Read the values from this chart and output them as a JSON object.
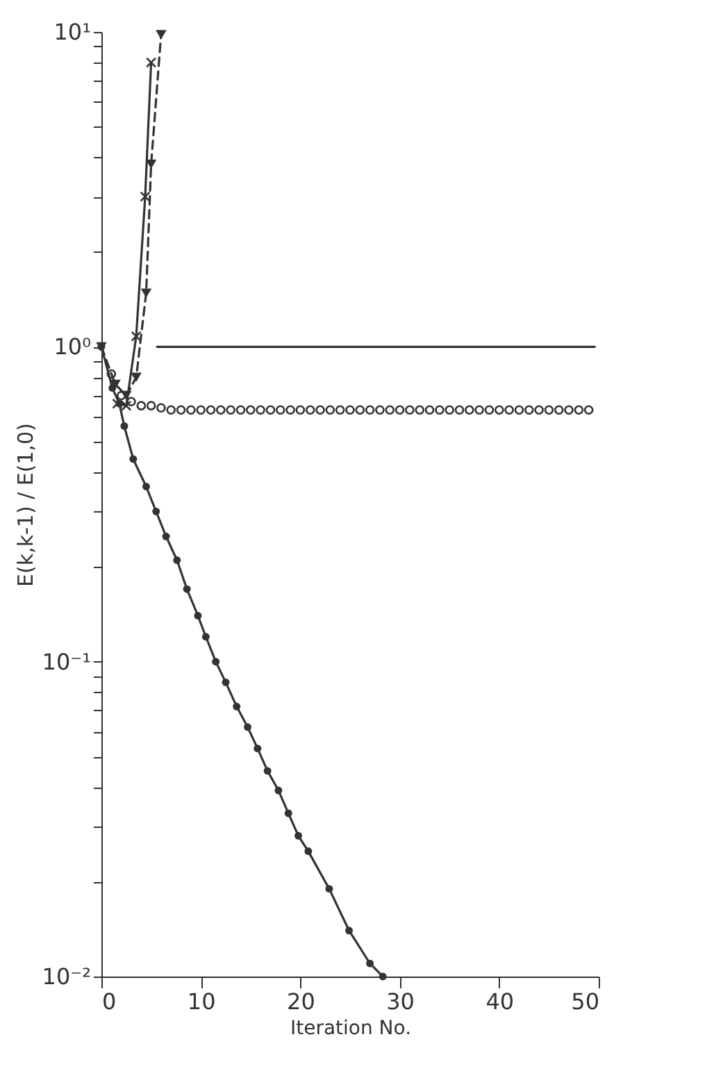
{
  "chart_data": {
    "type": "line",
    "xlabel": "Iteration No.",
    "ylabel": "E(k,k-1) / E(1,0)",
    "log": "y",
    "grid": false,
    "xlim": [
      0,
      50
    ],
    "xticks": [
      0,
      10,
      20,
      30,
      40,
      50
    ],
    "ylim": [
      0.01,
      10
    ],
    "yticks": [
      {
        "value": 0.01,
        "label": "10⁻²"
      },
      {
        "value": 0.02,
        "label": null
      },
      {
        "value": 0.03,
        "label": null
      },
      {
        "value": 0.04,
        "label": null
      },
      {
        "value": 0.05,
        "label": null
      },
      {
        "value": 0.06,
        "label": null
      },
      {
        "value": 0.07,
        "label": null
      },
      {
        "value": 0.08,
        "label": null
      },
      {
        "value": 0.09,
        "label": null
      },
      {
        "value": 0.1,
        "label": "10⁻¹"
      },
      {
        "value": 0.2,
        "label": null
      },
      {
        "value": 0.3,
        "label": null
      },
      {
        "value": 0.4,
        "label": null
      },
      {
        "value": 0.5,
        "label": null
      },
      {
        "value": 0.6,
        "label": null
      },
      {
        "value": 0.7,
        "label": null
      },
      {
        "value": 0.8,
        "label": null
      },
      {
        "value": 0.9,
        "label": null
      },
      {
        "value": 1,
        "label": "10⁰"
      },
      {
        "value": 2,
        "label": null
      },
      {
        "value": 3,
        "label": null
      },
      {
        "value": 4,
        "label": null
      },
      {
        "value": 5,
        "label": null
      },
      {
        "value": 6,
        "label": null
      },
      {
        "value": 7,
        "label": null
      },
      {
        "value": 8,
        "label": null
      },
      {
        "value": 9,
        "label": null
      },
      {
        "value": 10,
        "label": "10¹"
      }
    ],
    "series": [
      {
        "marker": "circle",
        "line_style": "solid",
        "color": "#333333",
        "x": [
          0,
          1.1,
          1.8,
          2.3,
          3.2,
          4.5,
          5.5,
          6.5,
          7.6,
          8.6,
          9.7,
          10.5,
          11.5,
          12.5,
          13.6,
          14.7,
          15.7,
          16.7,
          17.8,
          18.8,
          19.8,
          20.8,
          22.9,
          24.9,
          27.0,
          28.3
        ],
        "values": [
          1,
          0.74,
          0.66,
          0.56,
          0.44,
          0.36,
          0.3,
          0.25,
          0.21,
          0.17,
          0.14,
          0.12,
          0.1,
          0.086,
          0.072,
          0.062,
          0.053,
          0.045,
          0.039,
          0.033,
          0.028,
          0.025,
          0.019,
          0.014,
          0.011,
          0.01
        ]
      },
      {
        "type": "scatter",
        "marker": "circle",
        "color": "#333333",
        "x": [
          1,
          2,
          3,
          4,
          5,
          6,
          7,
          8,
          9,
          10,
          11,
          12,
          13,
          14,
          15,
          16,
          17,
          18,
          19,
          20,
          21,
          22,
          23,
          24,
          25,
          26,
          27,
          28,
          29,
          30,
          31,
          32,
          33,
          34,
          35,
          36,
          37,
          38,
          39,
          40,
          41,
          42,
          43,
          44,
          45,
          46,
          47,
          48,
          49
        ],
        "values": [
          0.82,
          0.7,
          0.67,
          0.65,
          0.65,
          0.64,
          0.63,
          0.63,
          0.63,
          0.63,
          0.63,
          0.63,
          0.63,
          0.63,
          0.63,
          0.63,
          0.63,
          0.63,
          0.63,
          0.63,
          0.63,
          0.63,
          0.63,
          0.63,
          0.63,
          0.63,
          0.63,
          0.63,
          0.63,
          0.63,
          0.63,
          0.63,
          0.63,
          0.63,
          0.63,
          0.63,
          0.63,
          0.63,
          0.63,
          0.63,
          0.63,
          0.63,
          0.63,
          0.63,
          0.63,
          0.63,
          0.63,
          0.63,
          0.63
        ]
      },
      {
        "type": "line",
        "marker": "none",
        "line_style": "solid",
        "color": "#333333",
        "x": [
          5.6,
          49.6
        ],
        "values": [
          1,
          1
        ]
      },
      {
        "type": "line",
        "marker": "cross",
        "line_style": "solid",
        "color": "#333333",
        "x": [
          1.6,
          2.5,
          3.5,
          4.4,
          5.0
        ],
        "values": [
          0.66,
          0.65,
          1.08,
          3.0,
          8.0
        ]
      },
      {
        "type": "line",
        "marker": "triangle",
        "line_style": "dashed",
        "color": "#333333",
        "x": [
          0,
          1.4,
          2.5,
          3.5,
          4.5,
          5.0,
          6.0
        ],
        "values": [
          1,
          0.76,
          0.7,
          0.8,
          1.48,
          3.8,
          9.8
        ]
      }
    ]
  }
}
